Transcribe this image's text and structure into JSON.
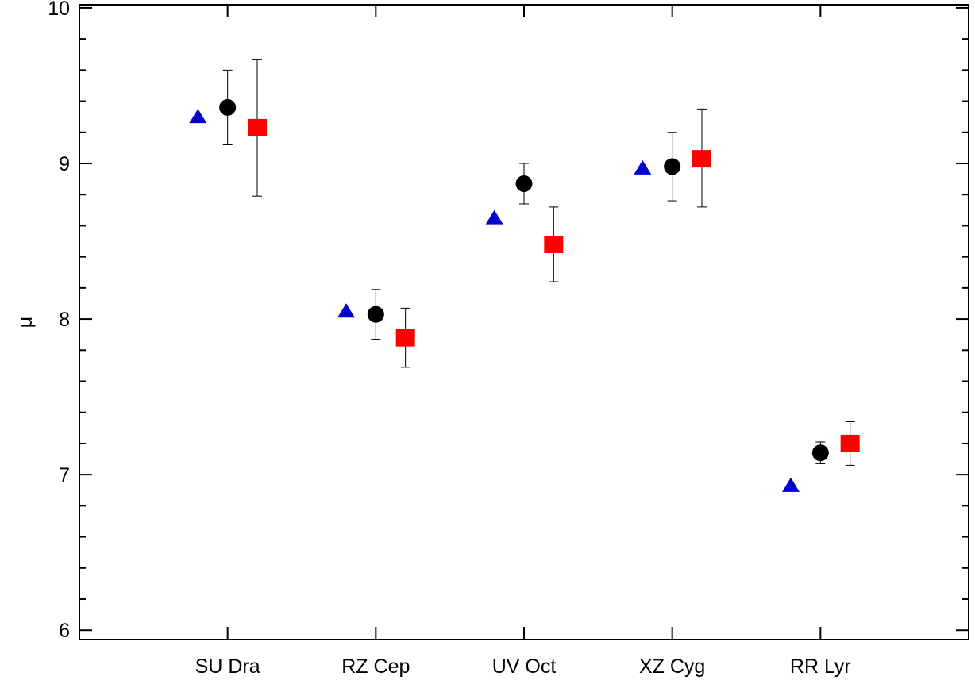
{
  "chart_data": {
    "type": "scatter",
    "title": "",
    "xlabel": "",
    "ylabel": "μ",
    "categories": [
      "SU Dra",
      "RZ Cep",
      "UV Oct",
      "XZ Cyg",
      "RR Lyr"
    ],
    "ylim": [
      5.94,
      10.02
    ],
    "yticks": [
      6,
      7,
      8,
      9,
      10
    ],
    "grid": false,
    "legend": "none",
    "series": [
      {
        "marker": "triangle",
        "color": "#0000cc",
        "offset": -0.2,
        "values": [
          9.3,
          8.05,
          8.65,
          8.97,
          6.93
        ]
      },
      {
        "marker": "circle",
        "color": "#000000",
        "offset": 0.0,
        "values": [
          9.36,
          8.03,
          8.87,
          8.98,
          7.14
        ],
        "err_low": [
          9.12,
          7.87,
          8.74,
          8.76,
          7.07
        ],
        "err_high": [
          9.6,
          8.19,
          9.0,
          9.2,
          7.21
        ]
      },
      {
        "marker": "square",
        "color": "#ff0000",
        "offset": 0.2,
        "values": [
          9.23,
          7.88,
          8.48,
          9.03,
          7.2
        ],
        "err_low": [
          8.79,
          7.69,
          8.24,
          8.72,
          7.06
        ],
        "err_high": [
          9.67,
          8.07,
          8.72,
          9.35,
          7.34
        ]
      }
    ]
  }
}
